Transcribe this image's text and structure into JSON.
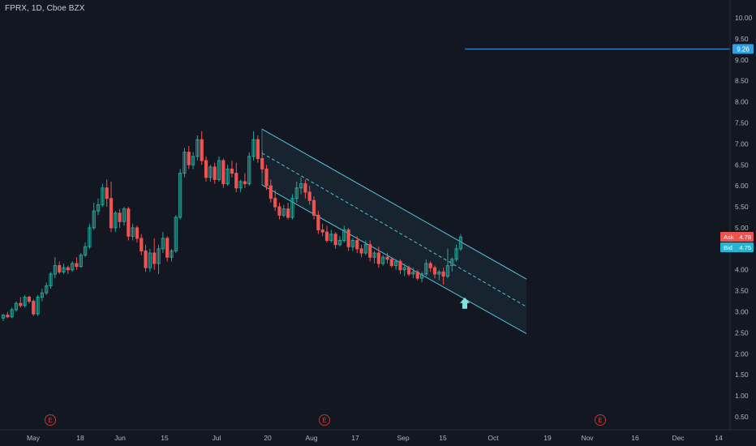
{
  "symbol_label": "FPRX, 1D, Cboe BZX",
  "colors": {
    "background": "#131722",
    "up": "#26a69a",
    "down": "#ef5350",
    "channel": "#4fc3d9",
    "axis_text": "#b2b5be",
    "ask_badge": "#ef5350",
    "bid_badge": "#26b5d0",
    "level_line": "#2ea0e6"
  },
  "chart_data": {
    "type": "candlestick",
    "interval": "1D",
    "x_ticks": [
      "May",
      "18",
      "Jun",
      "15",
      "Jul",
      "20",
      "Aug",
      "17",
      "Sep",
      "15",
      "Oct",
      "19",
      "Nov",
      "16",
      "Dec",
      "14"
    ],
    "y_ticks": [
      "10.00",
      "9.50",
      "9.00",
      "8.50",
      "8.00",
      "7.50",
      "7.00",
      "6.50",
      "6.00",
      "5.50",
      "5.00",
      "4.50",
      "4.00",
      "3.50",
      "3.00",
      "2.50",
      "2.00",
      "1.50",
      "1.00",
      "0.50"
    ],
    "ylim": [
      0.2,
      10.3
    ],
    "grid": false,
    "horizontal_level": {
      "value": 9.26,
      "label": "9.26"
    },
    "ask": {
      "label": "Ask",
      "value": "4.78"
    },
    "bid": {
      "label": "Bid",
      "value": "4.75"
    },
    "earnings_markers": [
      "E",
      "E",
      "E"
    ],
    "up_arrow_marker": {
      "value": 3.15
    },
    "regression_channel": {
      "upper": [
        7.35,
        3.78
      ],
      "middle": [
        6.78,
        3.12
      ],
      "lower": [
        6.02,
        2.48
      ]
    },
    "ohlc": [
      [
        2.85,
        2.95,
        2.78,
        2.92
      ],
      [
        2.92,
        3.0,
        2.85,
        2.88
      ],
      [
        2.88,
        3.1,
        2.85,
        3.05
      ],
      [
        3.05,
        3.25,
        3.0,
        3.2
      ],
      [
        3.2,
        3.35,
        3.1,
        3.15
      ],
      [
        3.15,
        3.4,
        3.1,
        3.35
      ],
      [
        3.35,
        3.38,
        3.2,
        3.25
      ],
      [
        3.25,
        3.3,
        2.9,
        2.95
      ],
      [
        2.95,
        3.4,
        2.9,
        3.35
      ],
      [
        3.35,
        3.55,
        3.25,
        3.45
      ],
      [
        3.45,
        3.7,
        3.4,
        3.62
      ],
      [
        3.62,
        3.95,
        3.55,
        3.9
      ],
      [
        3.9,
        4.3,
        3.8,
        4.1
      ],
      [
        4.1,
        4.2,
        3.9,
        3.95
      ],
      [
        3.95,
        4.15,
        3.9,
        4.05
      ],
      [
        4.05,
        4.1,
        3.9,
        4.0
      ],
      [
        4.0,
        4.2,
        3.95,
        4.15
      ],
      [
        4.15,
        4.3,
        4.0,
        4.08
      ],
      [
        4.08,
        4.4,
        4.05,
        4.35
      ],
      [
        4.35,
        4.65,
        4.3,
        4.55
      ],
      [
        4.55,
        5.1,
        4.5,
        5.0
      ],
      [
        5.0,
        5.6,
        4.95,
        5.4
      ],
      [
        5.4,
        5.7,
        5.3,
        5.55
      ],
      [
        5.55,
        6.05,
        5.5,
        5.95
      ],
      [
        5.95,
        6.15,
        5.5,
        5.7
      ],
      [
        5.7,
        6.1,
        4.9,
        5.0
      ],
      [
        5.0,
        5.4,
        4.9,
        5.35
      ],
      [
        5.35,
        5.45,
        5.0,
        5.15
      ],
      [
        5.15,
        5.5,
        5.05,
        5.45
      ],
      [
        5.45,
        5.5,
        4.7,
        4.8
      ],
      [
        4.8,
        5.1,
        4.7,
        5.0
      ],
      [
        5.0,
        5.05,
        4.65,
        4.75
      ],
      [
        4.75,
        4.85,
        4.35,
        4.45
      ],
      [
        4.45,
        4.6,
        3.95,
        4.05
      ],
      [
        4.05,
        4.5,
        3.95,
        4.4
      ],
      [
        4.4,
        4.75,
        4.0,
        4.15
      ],
      [
        4.15,
        4.6,
        3.9,
        4.5
      ],
      [
        4.5,
        4.9,
        4.4,
        4.75
      ],
      [
        4.75,
        4.8,
        4.2,
        4.3
      ],
      [
        4.3,
        4.5,
        4.2,
        4.45
      ],
      [
        4.45,
        5.3,
        4.4,
        5.25
      ],
      [
        5.25,
        6.4,
        5.2,
        6.3
      ],
      [
        6.3,
        6.9,
        6.2,
        6.8
      ],
      [
        6.8,
        6.95,
        6.4,
        6.5
      ],
      [
        6.5,
        6.8,
        6.4,
        6.7
      ],
      [
        6.7,
        7.2,
        6.6,
        7.1
      ],
      [
        7.1,
        7.3,
        6.5,
        6.6
      ],
      [
        6.6,
        6.7,
        6.1,
        6.2
      ],
      [
        6.2,
        6.5,
        6.1,
        6.45
      ],
      [
        6.45,
        6.55,
        6.05,
        6.15
      ],
      [
        6.15,
        6.7,
        6.1,
        6.6
      ],
      [
        6.6,
        6.65,
        5.95,
        6.05
      ],
      [
        6.05,
        6.5,
        6.0,
        6.4
      ],
      [
        6.4,
        6.6,
        6.2,
        6.3
      ],
      [
        6.3,
        6.55,
        5.85,
        5.95
      ],
      [
        5.95,
        6.15,
        5.85,
        6.1
      ],
      [
        6.1,
        6.3,
        5.95,
        6.05
      ],
      [
        6.05,
        6.8,
        6.0,
        6.7
      ],
      [
        6.7,
        7.3,
        6.6,
        7.1
      ],
      [
        7.1,
        7.2,
        6.55,
        6.65
      ],
      [
        6.65,
        6.85,
        6.3,
        6.4
      ],
      [
        6.4,
        6.5,
        5.9,
        6.0
      ],
      [
        6.0,
        6.15,
        5.6,
        5.7
      ],
      [
        5.7,
        5.9,
        5.4,
        5.5
      ],
      [
        5.5,
        5.6,
        5.2,
        5.3
      ],
      [
        5.3,
        5.55,
        5.25,
        5.45
      ],
      [
        5.45,
        5.6,
        5.2,
        5.25
      ],
      [
        5.25,
        5.8,
        5.2,
        5.7
      ],
      [
        5.7,
        6.1,
        5.6,
        5.95
      ],
      [
        5.95,
        6.2,
        5.8,
        6.05
      ],
      [
        6.05,
        6.15,
        5.7,
        5.85
      ],
      [
        5.85,
        6.0,
        5.55,
        5.65
      ],
      [
        5.65,
        5.75,
        5.2,
        5.3
      ],
      [
        5.3,
        5.4,
        4.85,
        4.95
      ],
      [
        4.95,
        5.1,
        4.8,
        4.9
      ],
      [
        4.9,
        5.05,
        4.65,
        4.7
      ],
      [
        4.7,
        4.95,
        4.65,
        4.85
      ],
      [
        4.85,
        4.9,
        4.5,
        4.6
      ],
      [
        4.6,
        4.8,
        4.55,
        4.7
      ],
      [
        4.7,
        5.05,
        4.65,
        4.95
      ],
      [
        4.95,
        5.0,
        4.45,
        4.55
      ],
      [
        4.55,
        4.75,
        4.45,
        4.7
      ],
      [
        4.7,
        4.8,
        4.4,
        4.5
      ],
      [
        4.5,
        4.6,
        4.3,
        4.4
      ],
      [
        4.4,
        4.7,
        4.35,
        4.6
      ],
      [
        4.6,
        4.7,
        4.2,
        4.3
      ],
      [
        4.3,
        4.45,
        4.15,
        4.4
      ],
      [
        4.4,
        4.55,
        4.05,
        4.15
      ],
      [
        4.15,
        4.35,
        4.1,
        4.3
      ],
      [
        4.3,
        4.4,
        4.15,
        4.25
      ],
      [
        4.25,
        4.3,
        4.05,
        4.1
      ],
      [
        4.1,
        4.25,
        4.0,
        4.2
      ],
      [
        4.2,
        4.25,
        3.9,
        4.0
      ],
      [
        4.0,
        4.15,
        3.85,
        4.05
      ],
      [
        4.05,
        4.1,
        3.85,
        3.9
      ],
      [
        3.9,
        4.05,
        3.8,
        3.95
      ],
      [
        3.95,
        4.0,
        3.75,
        3.8
      ],
      [
        3.8,
        3.95,
        3.7,
        3.9
      ],
      [
        3.9,
        4.25,
        3.85,
        4.15
      ],
      [
        4.15,
        4.2,
        3.95,
        4.05
      ],
      [
        4.05,
        4.1,
        3.8,
        3.9
      ],
      [
        3.9,
        4.0,
        3.75,
        3.95
      ],
      [
        3.95,
        4.05,
        3.65,
        3.85
      ],
      [
        3.85,
        4.5,
        3.8,
        4.1
      ],
      [
        4.1,
        4.3,
        3.95,
        4.25
      ],
      [
        4.25,
        4.6,
        4.2,
        4.5
      ],
      [
        4.5,
        4.85,
        4.45,
        4.78
      ]
    ]
  }
}
